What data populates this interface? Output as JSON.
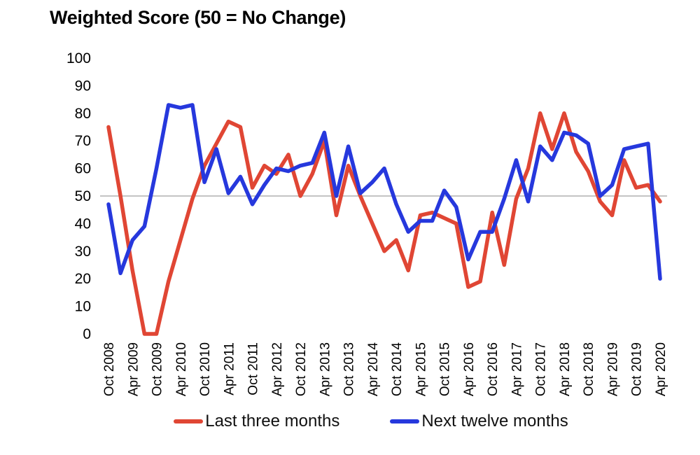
{
  "chart_data": {
    "type": "line",
    "title": "Weighted Score  (50 = No Change)",
    "categories": [
      "Oct 2008",
      "Jan 2009",
      "Apr 2009",
      "Jul 2009",
      "Oct 2009",
      "Jan 2010",
      "Apr 2010",
      "Jul 2010",
      "Oct 2010",
      "Jan 2011",
      "Apr 2011",
      "Jul 2011",
      "Oct 2011",
      "Jan 2012",
      "Apr 2012",
      "Jul 2012",
      "Oct 2012",
      "Jan 2013",
      "Apr 2013",
      "Jul 2013",
      "Oct 2013",
      "Jan 2014",
      "Apr 2014",
      "Jul 2014",
      "Oct 2014",
      "Jan 2015",
      "Apr 2015",
      "Jul 2015",
      "Oct 2015",
      "Jan 2016",
      "Apr 2016",
      "Jul 2016",
      "Oct 2016",
      "Jan 2017",
      "Apr 2017",
      "Jul 2017",
      "Oct 2017",
      "Jan 2018",
      "Apr 2018",
      "Jul 2018",
      "Oct 2018",
      "Jan 2019",
      "Apr 2019",
      "Jul 2019",
      "Oct 2019",
      "Jan 2020",
      "Apr 2020"
    ],
    "tick_every": 2,
    "tick_labels": [
      "Oct 2008",
      "Apr 2009",
      "Oct 2009",
      "Apr 2010",
      "Oct 2010",
      "Apr 2011",
      "Oct 2011",
      "Apr 2012",
      "Oct 2012",
      "Apr 2013",
      "Oct 2013",
      "Apr 2014",
      "Oct 2014",
      "Apr 2015",
      "Oct 2015",
      "Apr 2016",
      "Oct 2016",
      "Apr 2017",
      "Oct 2017",
      "Apr 2018",
      "Oct 2018",
      "Apr 2019",
      "Oct 2019",
      "Apr 2020"
    ],
    "series": [
      {
        "name": "Last three months",
        "color": "#e04634",
        "values": [
          75,
          50,
          23,
          0,
          0,
          19,
          34,
          49,
          61,
          69,
          77,
          75,
          53,
          61,
          58,
          65,
          50,
          58,
          70,
          43,
          61,
          50,
          40,
          30,
          34,
          23,
          43,
          44,
          42,
          40,
          17,
          19,
          44,
          25,
          49,
          60,
          80,
          67,
          80,
          66,
          59,
          48,
          43,
          63,
          53,
          54,
          48
        ]
      },
      {
        "name": "Next twelve months",
        "color": "#2638dd",
        "values": [
          47,
          22,
          34,
          39,
          60,
          83,
          82,
          83,
          55,
          67,
          51,
          57,
          47,
          54,
          60,
          59,
          61,
          62,
          73,
          50,
          68,
          51,
          55,
          60,
          47,
          37,
          41,
          41,
          52,
          46,
          27,
          37,
          37,
          49,
          63,
          48,
          68,
          63,
          73,
          72,
          69,
          50,
          54,
          67,
          68,
          69,
          20
        ]
      }
    ],
    "ylim": [
      0,
      100
    ],
    "yticks": [
      100,
      90,
      80,
      70,
      60,
      50,
      40,
      30,
      20,
      10,
      0
    ],
    "refline_value": 50,
    "refline_color": "#888888",
    "grid": "refline-only",
    "legend_position": "bottom"
  }
}
